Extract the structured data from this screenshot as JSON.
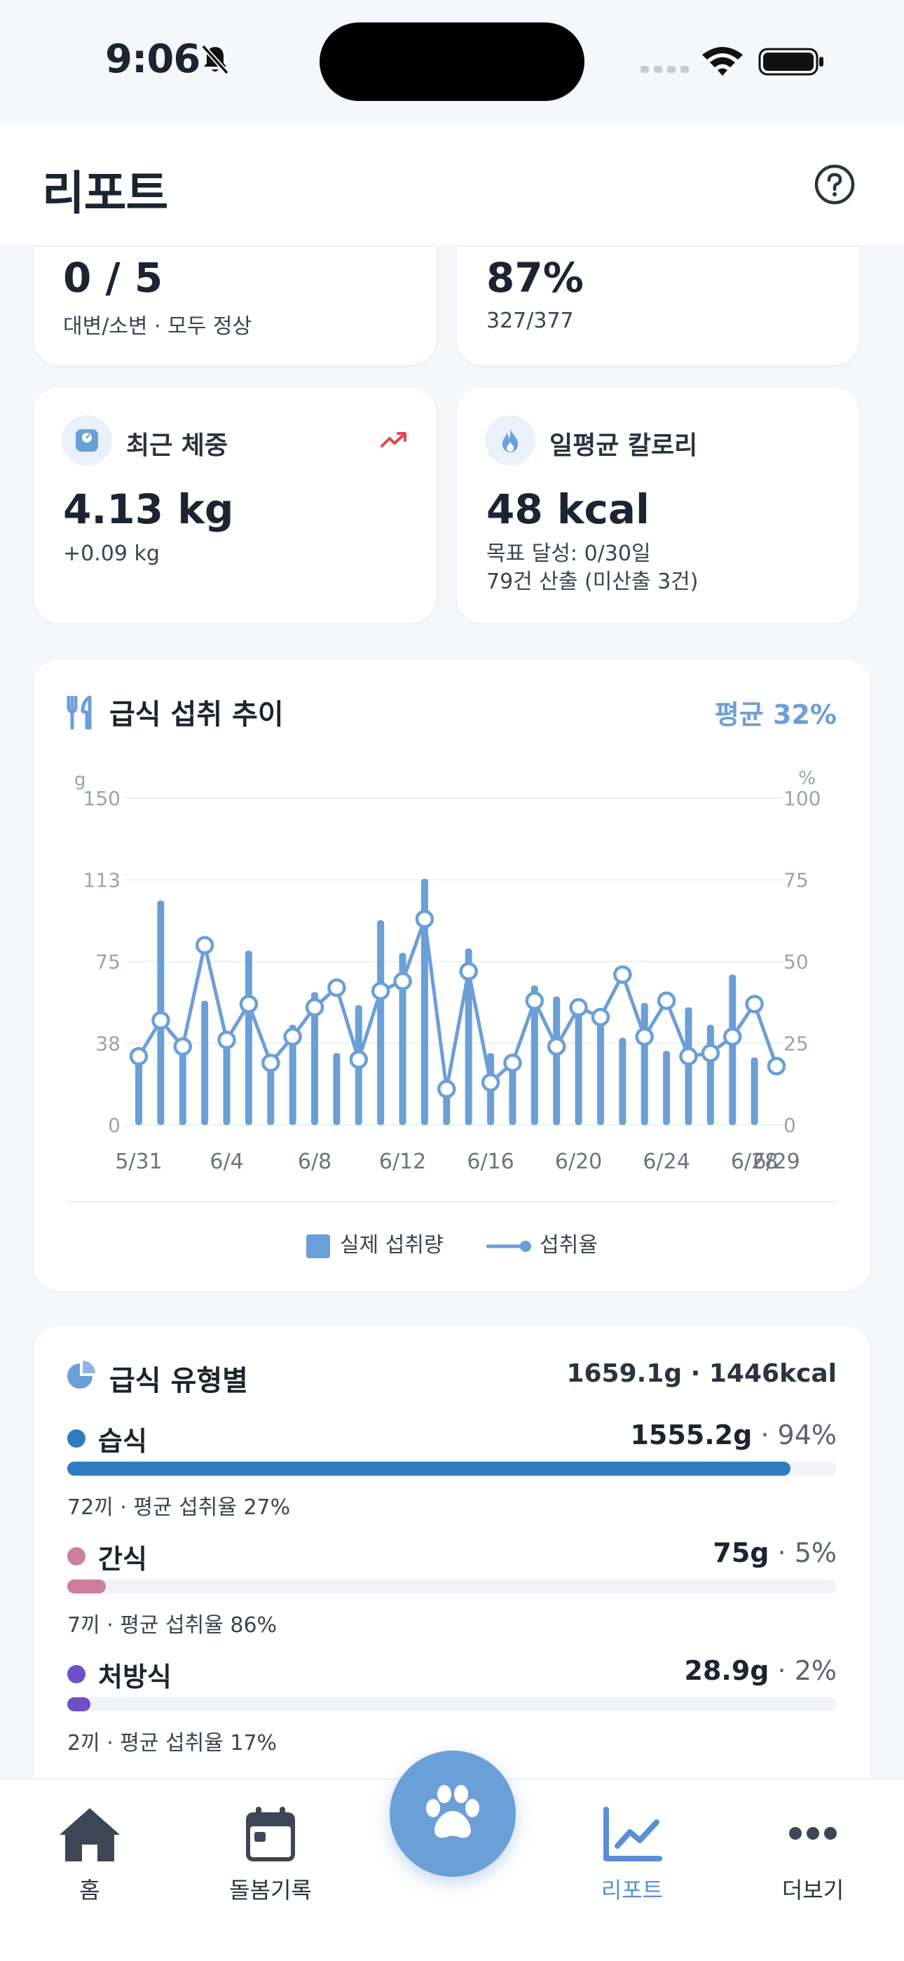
{
  "status_bar": {
    "time": "9:06"
  },
  "header": {
    "title": "리포트"
  },
  "summary_cards": [
    {
      "value": "0 / 5",
      "sub": "대변/소변 · 모두 정상"
    },
    {
      "value": "87%",
      "sub": "327/377"
    }
  ],
  "weight": {
    "label": "최근 체중",
    "value": "4.13 kg",
    "change": "+0.09 kg"
  },
  "calories": {
    "label": "일평균 칼로리",
    "value": "48 kcal",
    "goal": "목표 달성: 0/30일",
    "count": "79건 산출 (미산출 3건)"
  },
  "chart_card": {
    "title": "급식 섭취 추이",
    "average": "평균 32%"
  },
  "chart_data": {
    "type": "bar",
    "left_unit": "g",
    "right_unit": "%",
    "left_ticks": [
      "150",
      "113",
      "75",
      "38",
      "0"
    ],
    "right_ticks": [
      "100",
      "75",
      "50",
      "25",
      "0"
    ],
    "ylim_left": [
      0,
      150
    ],
    "ylim_right": [
      0,
      100
    ],
    "x_tick_labels": [
      "5/31",
      "6/4",
      "6/8",
      "6/12",
      "6/16",
      "6/20",
      "6/24",
      "6/28",
      "6/29"
    ],
    "x": [
      "5/31",
      "6/1",
      "6/2",
      "6/3",
      "6/4",
      "6/5",
      "6/6",
      "6/7",
      "6/8",
      "6/9",
      "6/10",
      "6/11",
      "6/12",
      "6/13",
      "6/14",
      "6/15",
      "6/16",
      "6/17",
      "6/18",
      "6/19",
      "6/20",
      "6/21",
      "6/22",
      "6/23",
      "6/24",
      "6/25",
      "6/26",
      "6/27",
      "6/28",
      "6/29"
    ],
    "series": [
      {
        "name": "실제 섭취량",
        "type": "bar",
        "axis": "left",
        "values": [
          33,
          103,
          38,
          57,
          38,
          80,
          30,
          46,
          61,
          33,
          55,
          94,
          79,
          113,
          20,
          81,
          33,
          27,
          64,
          59,
          52,
          47,
          40,
          56,
          34,
          54,
          46,
          69,
          31,
          0
        ]
      },
      {
        "name": "섭취율",
        "type": "line",
        "axis": "right",
        "values": [
          21,
          32,
          24,
          55,
          26,
          37,
          19,
          27,
          36,
          42,
          20,
          41,
          44,
          63,
          11,
          47,
          13,
          19,
          38,
          24,
          36,
          33,
          46,
          27,
          38,
          21,
          22,
          27,
          37,
          18
        ]
      }
    ],
    "grid": true,
    "legend": "bottom"
  },
  "meal_types": {
    "title": "급식 유형별",
    "total": "1659.1g · 1446kcal",
    "items": [
      {
        "name": "습식",
        "amount": "1555.2g",
        "percent": " · 94%",
        "share": 0.94,
        "sub": "72끼 · 평균 섭취율 27%",
        "color": "#2f7bbf"
      },
      {
        "name": "간식",
        "amount": "75g",
        "percent": " · 5%",
        "share": 0.05,
        "sub": "7끼 · 평균 섭취율 86%",
        "color": "#cc7f9c"
      },
      {
        "name": "처방식",
        "amount": "28.9g",
        "percent": " · 2%",
        "share": 0.02,
        "sub": "2끼 · 평균 섭취율 17%",
        "color": "#6f4fc9"
      }
    ]
  },
  "tabbar": {
    "home": "홈",
    "care_log": "돌봄기록",
    "report": "리포트",
    "more": "더보기"
  },
  "colors": {
    "accent": "#6b9fd8",
    "active_tab": "#5b8fd4",
    "trend_up": "#e04848"
  }
}
